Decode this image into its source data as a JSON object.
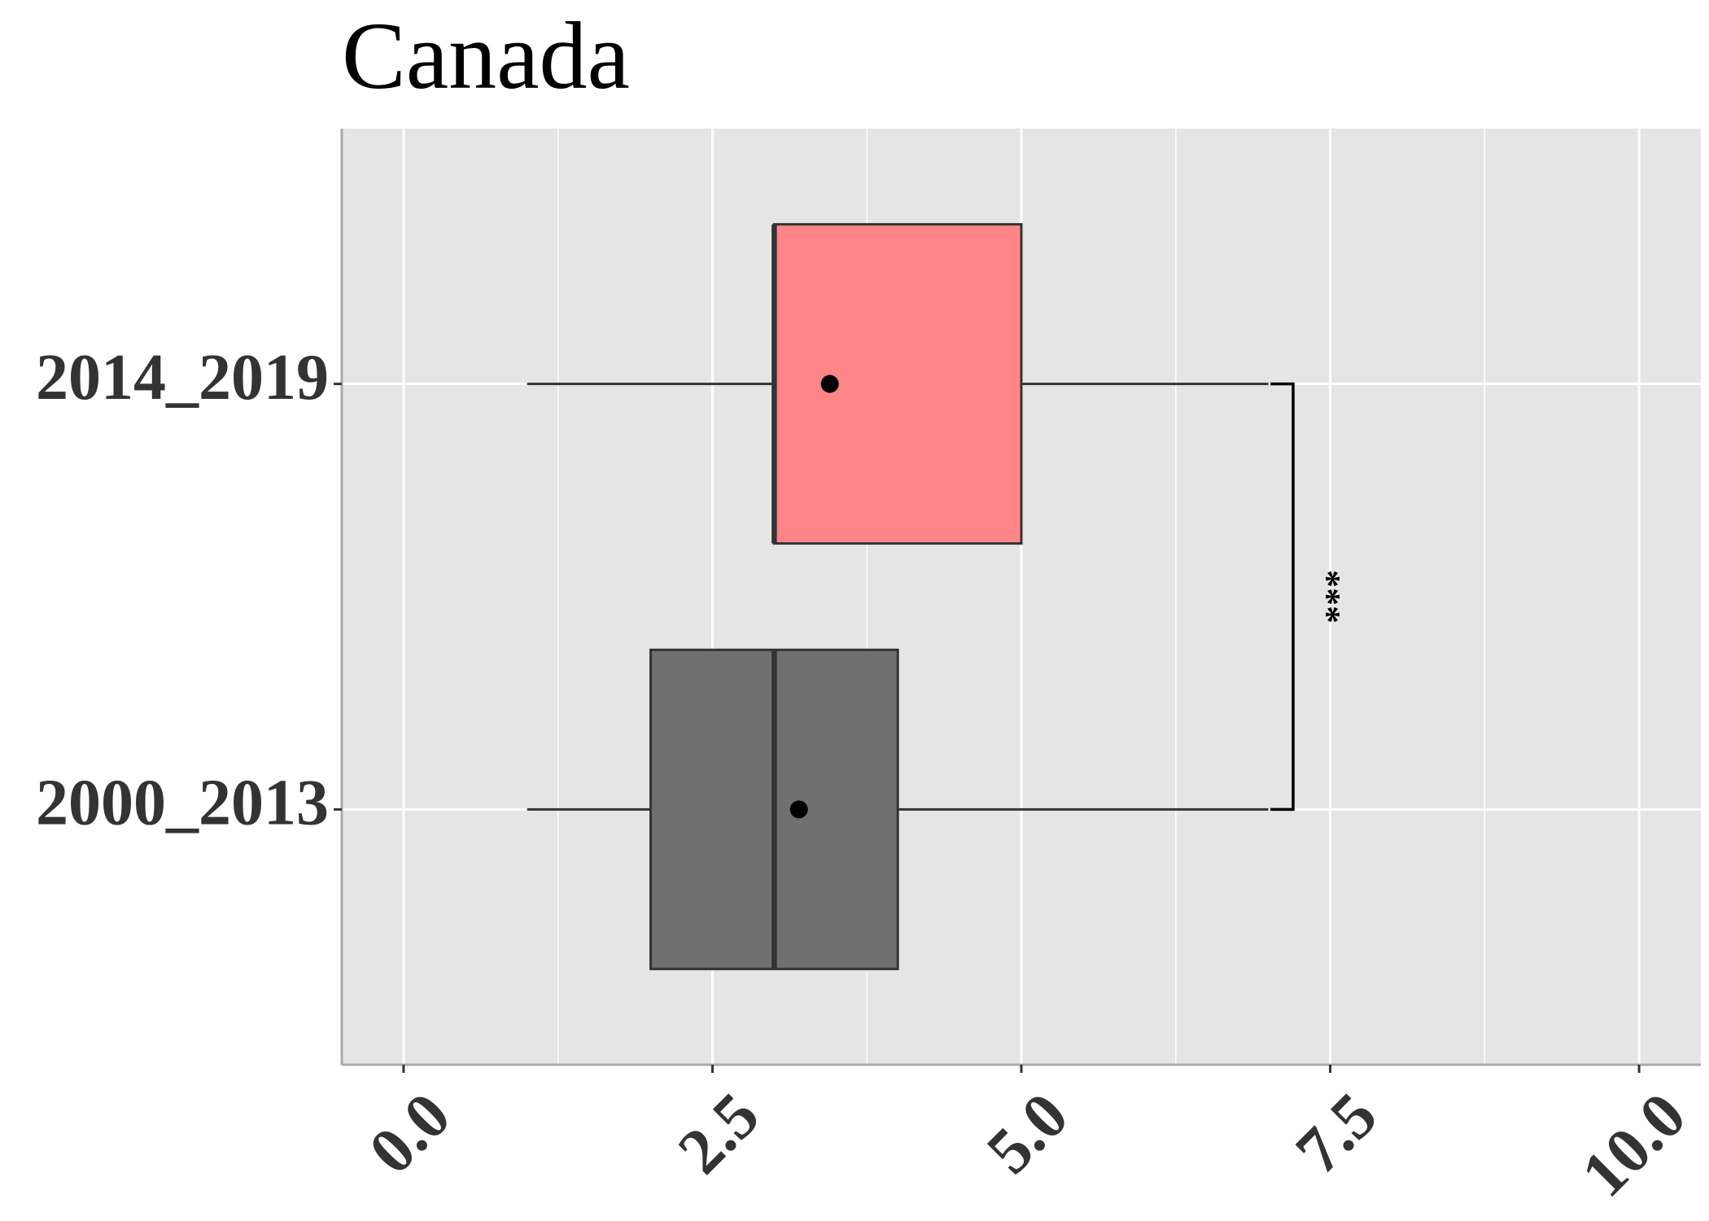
{
  "chart_data": {
    "type": "boxplot",
    "title": "Canada",
    "xlabel": "",
    "ylabel": "",
    "orientation": "horizontal",
    "xlim": [
      -0.5,
      10.5
    ],
    "xticks": [
      0,
      2.5,
      5,
      7.5,
      10
    ],
    "xtick_labels": [
      "0.0",
      "2.5",
      "5.0",
      "7.5",
      "10.0"
    ],
    "grid": true,
    "categories": [
      "2000_2013",
      "2014_2019"
    ],
    "series": [
      {
        "category": "2000_2013",
        "color": "#707070",
        "whisker_low": 1,
        "q1": 2,
        "median": 3,
        "q3": 4,
        "whisker_high": 7,
        "mean": 3.2
      },
      {
        "category": "2014_2019",
        "color": "#FF8688",
        "whisker_low": 1,
        "q1": 3,
        "median": 3,
        "q3": 5,
        "whisker_high": 7,
        "mean": 3.45
      }
    ],
    "annotations": [
      {
        "type": "significance-bracket",
        "between": [
          "2000_2013",
          "2014_2019"
        ],
        "at_x": 7.2,
        "label": "***"
      }
    ]
  }
}
